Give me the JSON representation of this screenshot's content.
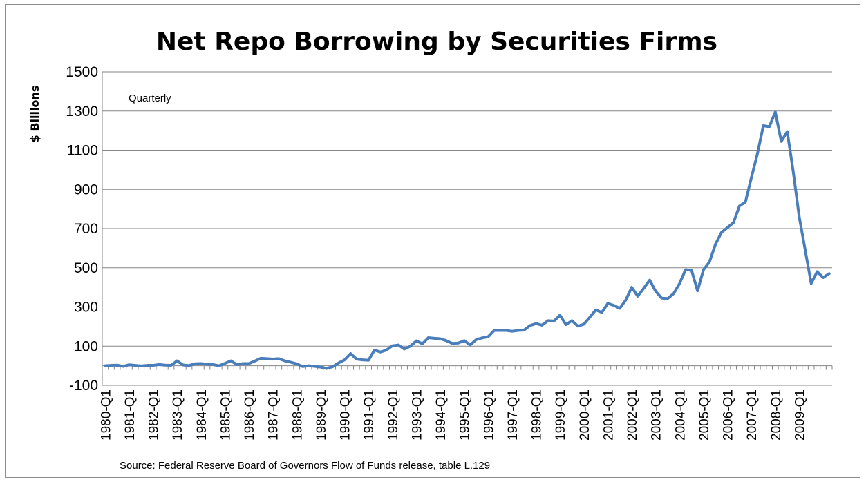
{
  "chart_data": {
    "type": "line",
    "title": "Net Repo Borrowing by Securities Firms",
    "ylabel": "$ Billions",
    "xlabel": "",
    "annotation": "Quarterly",
    "source": "Source: Federal Reserve Board of Governors Flow of Funds release, table  L.129",
    "ylim": [
      -100,
      1500
    ],
    "yticks": [
      -100,
      100,
      300,
      500,
      700,
      900,
      1100,
      1300,
      1500
    ],
    "xtick_labels": [
      "1980-Q1",
      "1981-Q1",
      "1982-Q1",
      "1983-Q1",
      "1984-Q1",
      "1985-Q1",
      "1986-Q1",
      "1987-Q1",
      "1988-Q1",
      "1989-Q1",
      "1990-Q1",
      "1991-Q1",
      "1992-Q1",
      "1993-Q1",
      "1994-Q1",
      "1995-Q1",
      "1996-Q1",
      "1997-Q1",
      "1998-Q1",
      "1999-Q1",
      "2000-Q1",
      "2001-Q1",
      "2002-Q1",
      "2003-Q1",
      "2004-Q1",
      "2005-Q1",
      "2006-Q1",
      "2007-Q1",
      "2008-Q1",
      "2009-Q1"
    ],
    "grid": true,
    "line_color": "#4a7ebb",
    "series": [
      {
        "values": [
          0,
          2,
          3,
          -3,
          5,
          2,
          -1,
          2,
          2,
          6,
          3,
          2,
          25,
          4,
          1,
          10,
          11,
          8,
          6,
          0,
          12,
          25,
          6,
          11,
          11,
          24,
          38,
          36,
          34,
          36,
          25,
          18,
          10,
          -4,
          0,
          -3,
          -7,
          -14,
          -5,
          14,
          30,
          62,
          34,
          30,
          28,
          80,
          70,
          80,
          102,
          106,
          85,
          100,
          127,
          112,
          143,
          140,
          138,
          128,
          114,
          116,
          128,
          106,
          133,
          142,
          148,
          180,
          180,
          180,
          176,
          180,
          182,
          205,
          215,
          207,
          230,
          228,
          258,
          210,
          230,
          202,
          212,
          248,
          285,
          272,
          318,
          308,
          293,
          335,
          400,
          355,
          395,
          437,
          380,
          345,
          343,
          368,
          420,
          490,
          487,
          382,
          490,
          530,
          620,
          680,
          705,
          730,
          815,
          835,
          960,
          1080,
          1225,
          1220,
          1295,
          1145,
          1195,
          990,
          760,
          590,
          420,
          480,
          450,
          470
        ]
      }
    ]
  }
}
